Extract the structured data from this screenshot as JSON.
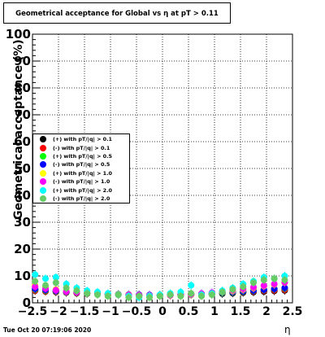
{
  "title": "Geometrical acceptance for Global vs  η at pT > 0.11",
  "timestamp": "Tue Oct 20 07:19:06 2020",
  "chart_data": {
    "type": "scatter",
    "title": "Geometrical acceptance for Global vs  η at pT > 0.11",
    "xlabel": "η",
    "ylabel": "Geometrical acceptance (%)",
    "xlim": [
      -2.5,
      2.5
    ],
    "ylim": [
      0,
      100
    ],
    "grid": true,
    "legend_position": "left-middle",
    "xticks": [
      -2.5,
      -2,
      -1.5,
      -1,
      -0.5,
      0,
      0.5,
      1,
      1.5,
      2,
      2.5
    ],
    "xtick_labels": [
      "−2.5",
      "−2",
      "−1.5",
      "−1",
      "−0.5",
      "0",
      "0.5",
      "1",
      "1.5",
      "2",
      "2.5"
    ],
    "yticks": [
      0,
      10,
      20,
      30,
      40,
      50,
      60,
      70,
      80,
      90,
      100
    ],
    "ytick_labels": [
      "0",
      "10",
      "20",
      "30",
      "40",
      "50",
      "60",
      "70",
      "80",
      "90",
      "100"
    ],
    "series": [
      {
        "name": "(+) with pT/|q| > 0.1",
        "color": "#000000",
        "x": [
          -2.45,
          -2.25,
          -2.05,
          -1.85,
          -1.65,
          -1.45,
          -1.25,
          -1.05,
          -0.85,
          -0.65,
          -0.45,
          -0.25,
          -0.05,
          0.15,
          0.35,
          0.55,
          0.75,
          0.95,
          1.15,
          1.35,
          1.55,
          1.75,
          1.95,
          2.15,
          2.35
        ],
        "y": [
          4.5,
          4.2,
          4.0,
          3.8,
          3.6,
          3.4,
          3.3,
          3.1,
          3.0,
          2.9,
          2.8,
          2.7,
          2.7,
          2.8,
          2.9,
          3.0,
          3.1,
          3.2,
          3.4,
          3.6,
          3.8,
          4.0,
          4.2,
          4.4,
          4.6
        ]
      },
      {
        "name": "(-) with pT/|q| > 0.1",
        "color": "#ff0000",
        "x": [
          -2.45,
          -2.25,
          -2.05,
          -1.85,
          -1.65,
          -1.45,
          -1.25,
          -1.05,
          -0.85,
          -0.65,
          -0.45,
          -0.25,
          -0.05,
          0.15,
          0.35,
          0.55,
          0.75,
          0.95,
          1.15,
          1.35,
          1.55,
          1.75,
          1.95,
          2.15,
          2.35
        ],
        "y": [
          4.6,
          4.3,
          4.1,
          3.9,
          3.7,
          3.5,
          3.3,
          3.2,
          3.1,
          3.0,
          2.9,
          2.8,
          2.9,
          3.0,
          3.1,
          3.3,
          3.4,
          3.6,
          3.7,
          3.9,
          4.1,
          4.3,
          4.5,
          4.7,
          4.9
        ]
      },
      {
        "name": "(+) with pT/|q| > 0.5",
        "color": "#00ff00",
        "x": [
          -2.45,
          -2.25,
          -2.05,
          -1.85,
          -1.65,
          -1.45,
          -1.25,
          -1.05,
          -0.85,
          -0.65,
          -0.45,
          -0.25,
          -0.05,
          0.15,
          0.35,
          0.55,
          0.75,
          0.95,
          1.15,
          1.35,
          1.55,
          1.75,
          1.95,
          2.15,
          2.35
        ],
        "y": [
          5.0,
          4.6,
          4.3,
          4.0,
          3.8,
          3.6,
          3.4,
          3.2,
          3.1,
          3.0,
          2.9,
          2.8,
          2.8,
          2.9,
          3.0,
          3.1,
          3.3,
          3.5,
          3.7,
          3.9,
          4.2,
          4.5,
          4.8,
          5.1,
          5.4
        ]
      },
      {
        "name": "(-) with pT/|q| > 0.5",
        "color": "#0000ff",
        "x": [
          -2.45,
          -2.25,
          -2.05,
          -1.85,
          -1.65,
          -1.45,
          -1.25,
          -1.05,
          -0.85,
          -0.65,
          -0.45,
          -0.25,
          -0.05,
          0.15,
          0.35,
          0.55,
          0.75,
          0.95,
          1.15,
          1.35,
          1.55,
          1.75,
          1.95,
          2.15,
          2.35
        ],
        "y": [
          5.2,
          4.8,
          4.4,
          4.1,
          3.9,
          3.7,
          3.5,
          3.3,
          3.2,
          3.1,
          3.0,
          2.9,
          2.9,
          3.0,
          3.1,
          3.2,
          3.4,
          3.6,
          3.8,
          4.0,
          4.3,
          4.6,
          4.9,
          5.2,
          5.6
        ]
      },
      {
        "name": "(+) with pT/|q| > 1.0",
        "color": "#ffff00",
        "x": [
          -2.45,
          -2.25,
          -2.05,
          -1.85,
          -1.65,
          -1.45,
          -1.25,
          -1.05,
          -0.85,
          -0.65,
          -0.45,
          -0.25,
          -0.05,
          0.15,
          0.35,
          0.55,
          0.75,
          0.95,
          1.15,
          1.35,
          1.55,
          1.75,
          1.95,
          2.15,
          2.35
        ],
        "y": [
          6.5,
          5.8,
          5.0,
          4.5,
          4.0,
          3.8,
          3.5,
          3.3,
          3.1,
          3.0,
          2.8,
          2.7,
          2.6,
          2.7,
          2.9,
          3.1,
          3.3,
          3.6,
          4.0,
          4.4,
          4.9,
          5.5,
          6.2,
          6.8,
          7.5
        ]
      },
      {
        "name": "(-) with pT/|q| > 1.0",
        "color": "#ff00ff",
        "x": [
          -2.45,
          -2.25,
          -2.05,
          -1.85,
          -1.65,
          -1.45,
          -1.25,
          -1.05,
          -0.85,
          -0.65,
          -0.45,
          -0.25,
          -0.05,
          0.15,
          0.35,
          0.55,
          0.75,
          0.95,
          1.15,
          1.35,
          1.55,
          1.75,
          1.95,
          2.15,
          2.35
        ],
        "y": [
          6.0,
          5.3,
          4.7,
          4.2,
          3.9,
          3.6,
          3.4,
          3.2,
          3.0,
          2.9,
          2.8,
          2.7,
          2.7,
          2.8,
          3.0,
          3.2,
          3.4,
          3.8,
          4.2,
          4.7,
          5.2,
          5.8,
          6.4,
          7.0,
          7.6
        ]
      },
      {
        "name": "(+) with pT/|q| > 2.0",
        "color": "#00ffff",
        "x": [
          -2.45,
          -2.25,
          -2.05,
          -1.85,
          -1.65,
          -1.45,
          -1.25,
          -1.05,
          -0.85,
          -0.65,
          -0.45,
          -0.25,
          -0.05,
          0.15,
          0.35,
          0.55,
          0.75,
          0.95,
          1.15,
          1.35,
          1.55,
          1.75,
          1.95,
          2.15,
          2.35
        ],
        "y": [
          10.5,
          9.0,
          9.5,
          7.0,
          5.5,
          4.5,
          4.0,
          3.5,
          3.0,
          2.5,
          2.0,
          2.5,
          3.0,
          3.5,
          4.0,
          6.5,
          3.0,
          3.5,
          4.5,
          5.5,
          7.0,
          8.0,
          9.5,
          9.0,
          10.0
        ]
      },
      {
        "name": "(-) with pT/|q| > 2.0",
        "color": "#66cc66",
        "x": [
          -2.45,
          -2.25,
          -2.05,
          -1.85,
          -1.65,
          -1.45,
          -1.25,
          -1.05,
          -0.85,
          -0.65,
          -0.45,
          -0.25,
          -0.05,
          0.15,
          0.35,
          0.55,
          0.75,
          0.95,
          1.15,
          1.35,
          1.55,
          1.75,
          1.95,
          2.15,
          2.35
        ],
        "y": [
          8.0,
          6.5,
          7.5,
          5.5,
          4.5,
          3.5,
          3.0,
          2.5,
          3.0,
          2.0,
          2.5,
          2.0,
          2.5,
          3.0,
          2.5,
          3.5,
          2.5,
          3.0,
          4.0,
          5.0,
          6.0,
          7.5,
          8.5,
          9.0,
          8.5
        ]
      }
    ]
  }
}
